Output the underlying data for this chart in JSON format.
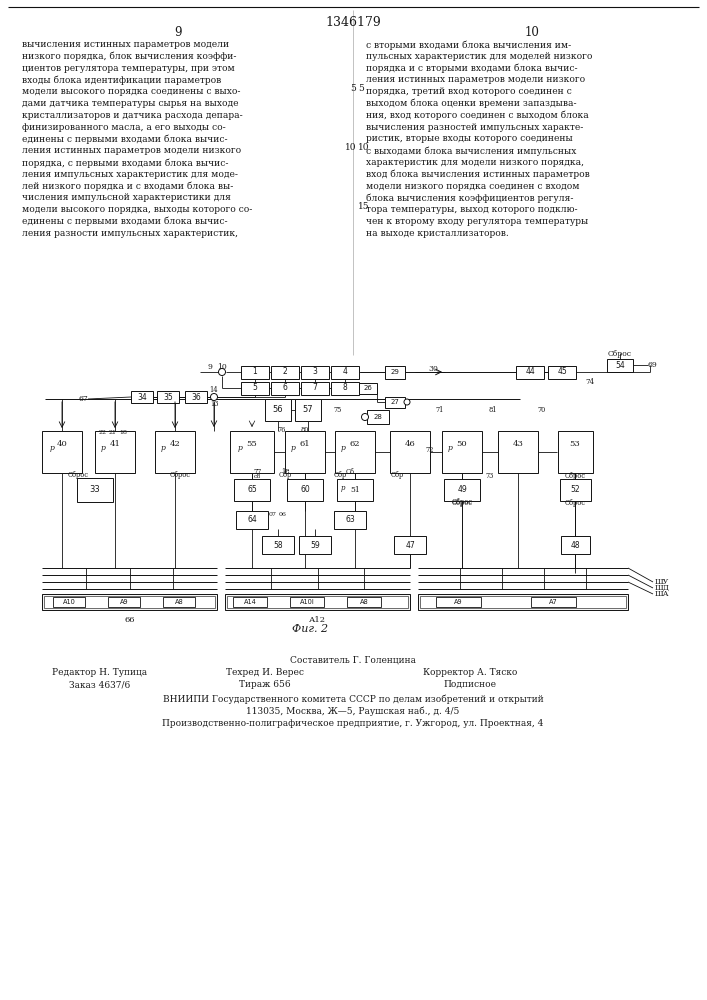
{
  "patent_number": "1346179",
  "page_left": "9",
  "page_right": "10",
  "fig_caption": "Фиг. 2",
  "footer_left1": "Редактор Н. Тупица",
  "footer_left2": "Заказ 4637/6",
  "footer_mid1": "Составитель Г. Голенцина",
  "footer_mid2": "Техред И. Верес",
  "footer_mid3": "Тираж 656",
  "footer_right1": "Корректор А. Тяско",
  "footer_right2": "Подписное",
  "footer_vniipи": "ВНИИПИ Государственного комитета СССР по делам изобретений и открытий",
  "footer_address": "113035, Москва, Ж—5, Раушская наб., д. 4/5",
  "footer_polygraph": "Производственно-полиграфическое предприятие, г. Ужгород, ул. Проектная, 4",
  "bg_color": "#ffffff",
  "text_color": "#1a1a1a"
}
